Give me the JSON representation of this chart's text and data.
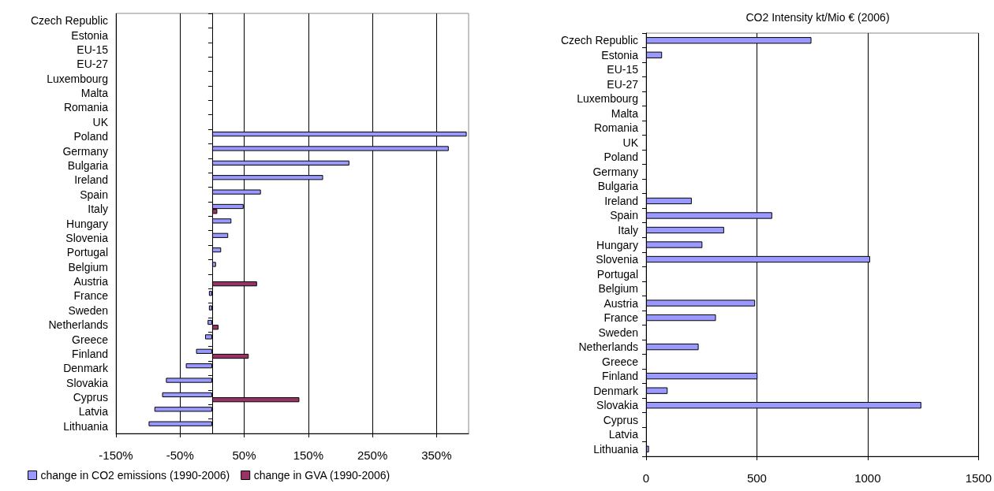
{
  "chart_data": [
    {
      "type": "bar",
      "orientation": "horizontal",
      "categories": [
        "Czech Republic",
        "Estonia",
        "EU-15",
        "EU-27",
        "Luxembourg",
        "Malta",
        "Romania",
        "UK",
        "Poland",
        "Germany",
        "Bulgaria",
        "Ireland",
        "Spain",
        "Italy",
        "Hungary",
        "Slovenia",
        "Portugal",
        "Belgium",
        "Austria",
        "France",
        "Sweden",
        "Netherlands",
        "Greece",
        "Finland",
        "Denmark",
        "Slovakia",
        "Cyprus",
        "Latvia",
        "Lithuania"
      ],
      "series": [
        {
          "name": "change in CO2 emissions (1990-2006)",
          "color": "#9999ff",
          "values": [
            null,
            null,
            null,
            null,
            null,
            null,
            null,
            null,
            397,
            369,
            214,
            173,
            76,
            49,
            30,
            25,
            14,
            6,
            null,
            -5,
            -5,
            -7,
            -11,
            -25,
            -41,
            -72,
            -78,
            -90,
            -99
          ]
        },
        {
          "name": "change in GVA (1990-2006)",
          "color": "#993366",
          "values": [
            null,
            null,
            null,
            null,
            null,
            null,
            null,
            null,
            null,
            null,
            null,
            null,
            null,
            8,
            null,
            null,
            null,
            null,
            70,
            null,
            null,
            10,
            null,
            57,
            null,
            null,
            136,
            null,
            null
          ]
        }
      ],
      "xlim": [
        -150,
        400
      ],
      "xticks": [
        {
          "value": -150,
          "label": "-150%"
        },
        {
          "value": -50,
          "label": "-50%"
        },
        {
          "value": 50,
          "label": "50%"
        },
        {
          "value": 150,
          "label": "150%"
        },
        {
          "value": 250,
          "label": "250%"
        },
        {
          "value": 350,
          "label": "350%"
        }
      ],
      "grid": "x",
      "legend": "bottom"
    },
    {
      "type": "bar",
      "orientation": "horizontal",
      "title": "CO2 Intensity kt/Mio € (2006)",
      "categories": [
        "Czech Republic",
        "Estonia",
        "EU-15",
        "EU-27",
        "Luxembourg",
        "Malta",
        "Romania",
        "UK",
        "Poland",
        "Germany",
        "Bulgaria",
        "Ireland",
        "Spain",
        "Italy",
        "Hungary",
        "Slovenia",
        "Portugal",
        "Belgium",
        "Austria",
        "France",
        "Sweden",
        "Netherlands",
        "Greece",
        "Finland",
        "Denmark",
        "Slovakia",
        "Cyprus",
        "Latvia",
        "Lithuania"
      ],
      "series": [
        {
          "color": "#9999ff",
          "values": [
            746,
            72,
            null,
            null,
            null,
            null,
            null,
            null,
            null,
            null,
            null,
            206,
            569,
            352,
            254,
            1011,
            null,
            null,
            492,
            315,
            null,
            237,
            null,
            503,
            97,
            1242,
            null,
            null,
            13
          ]
        }
      ],
      "xlim": [
        0,
        1500
      ],
      "xticks": [
        0,
        500,
        1000,
        1500
      ],
      "grid": "x"
    }
  ]
}
